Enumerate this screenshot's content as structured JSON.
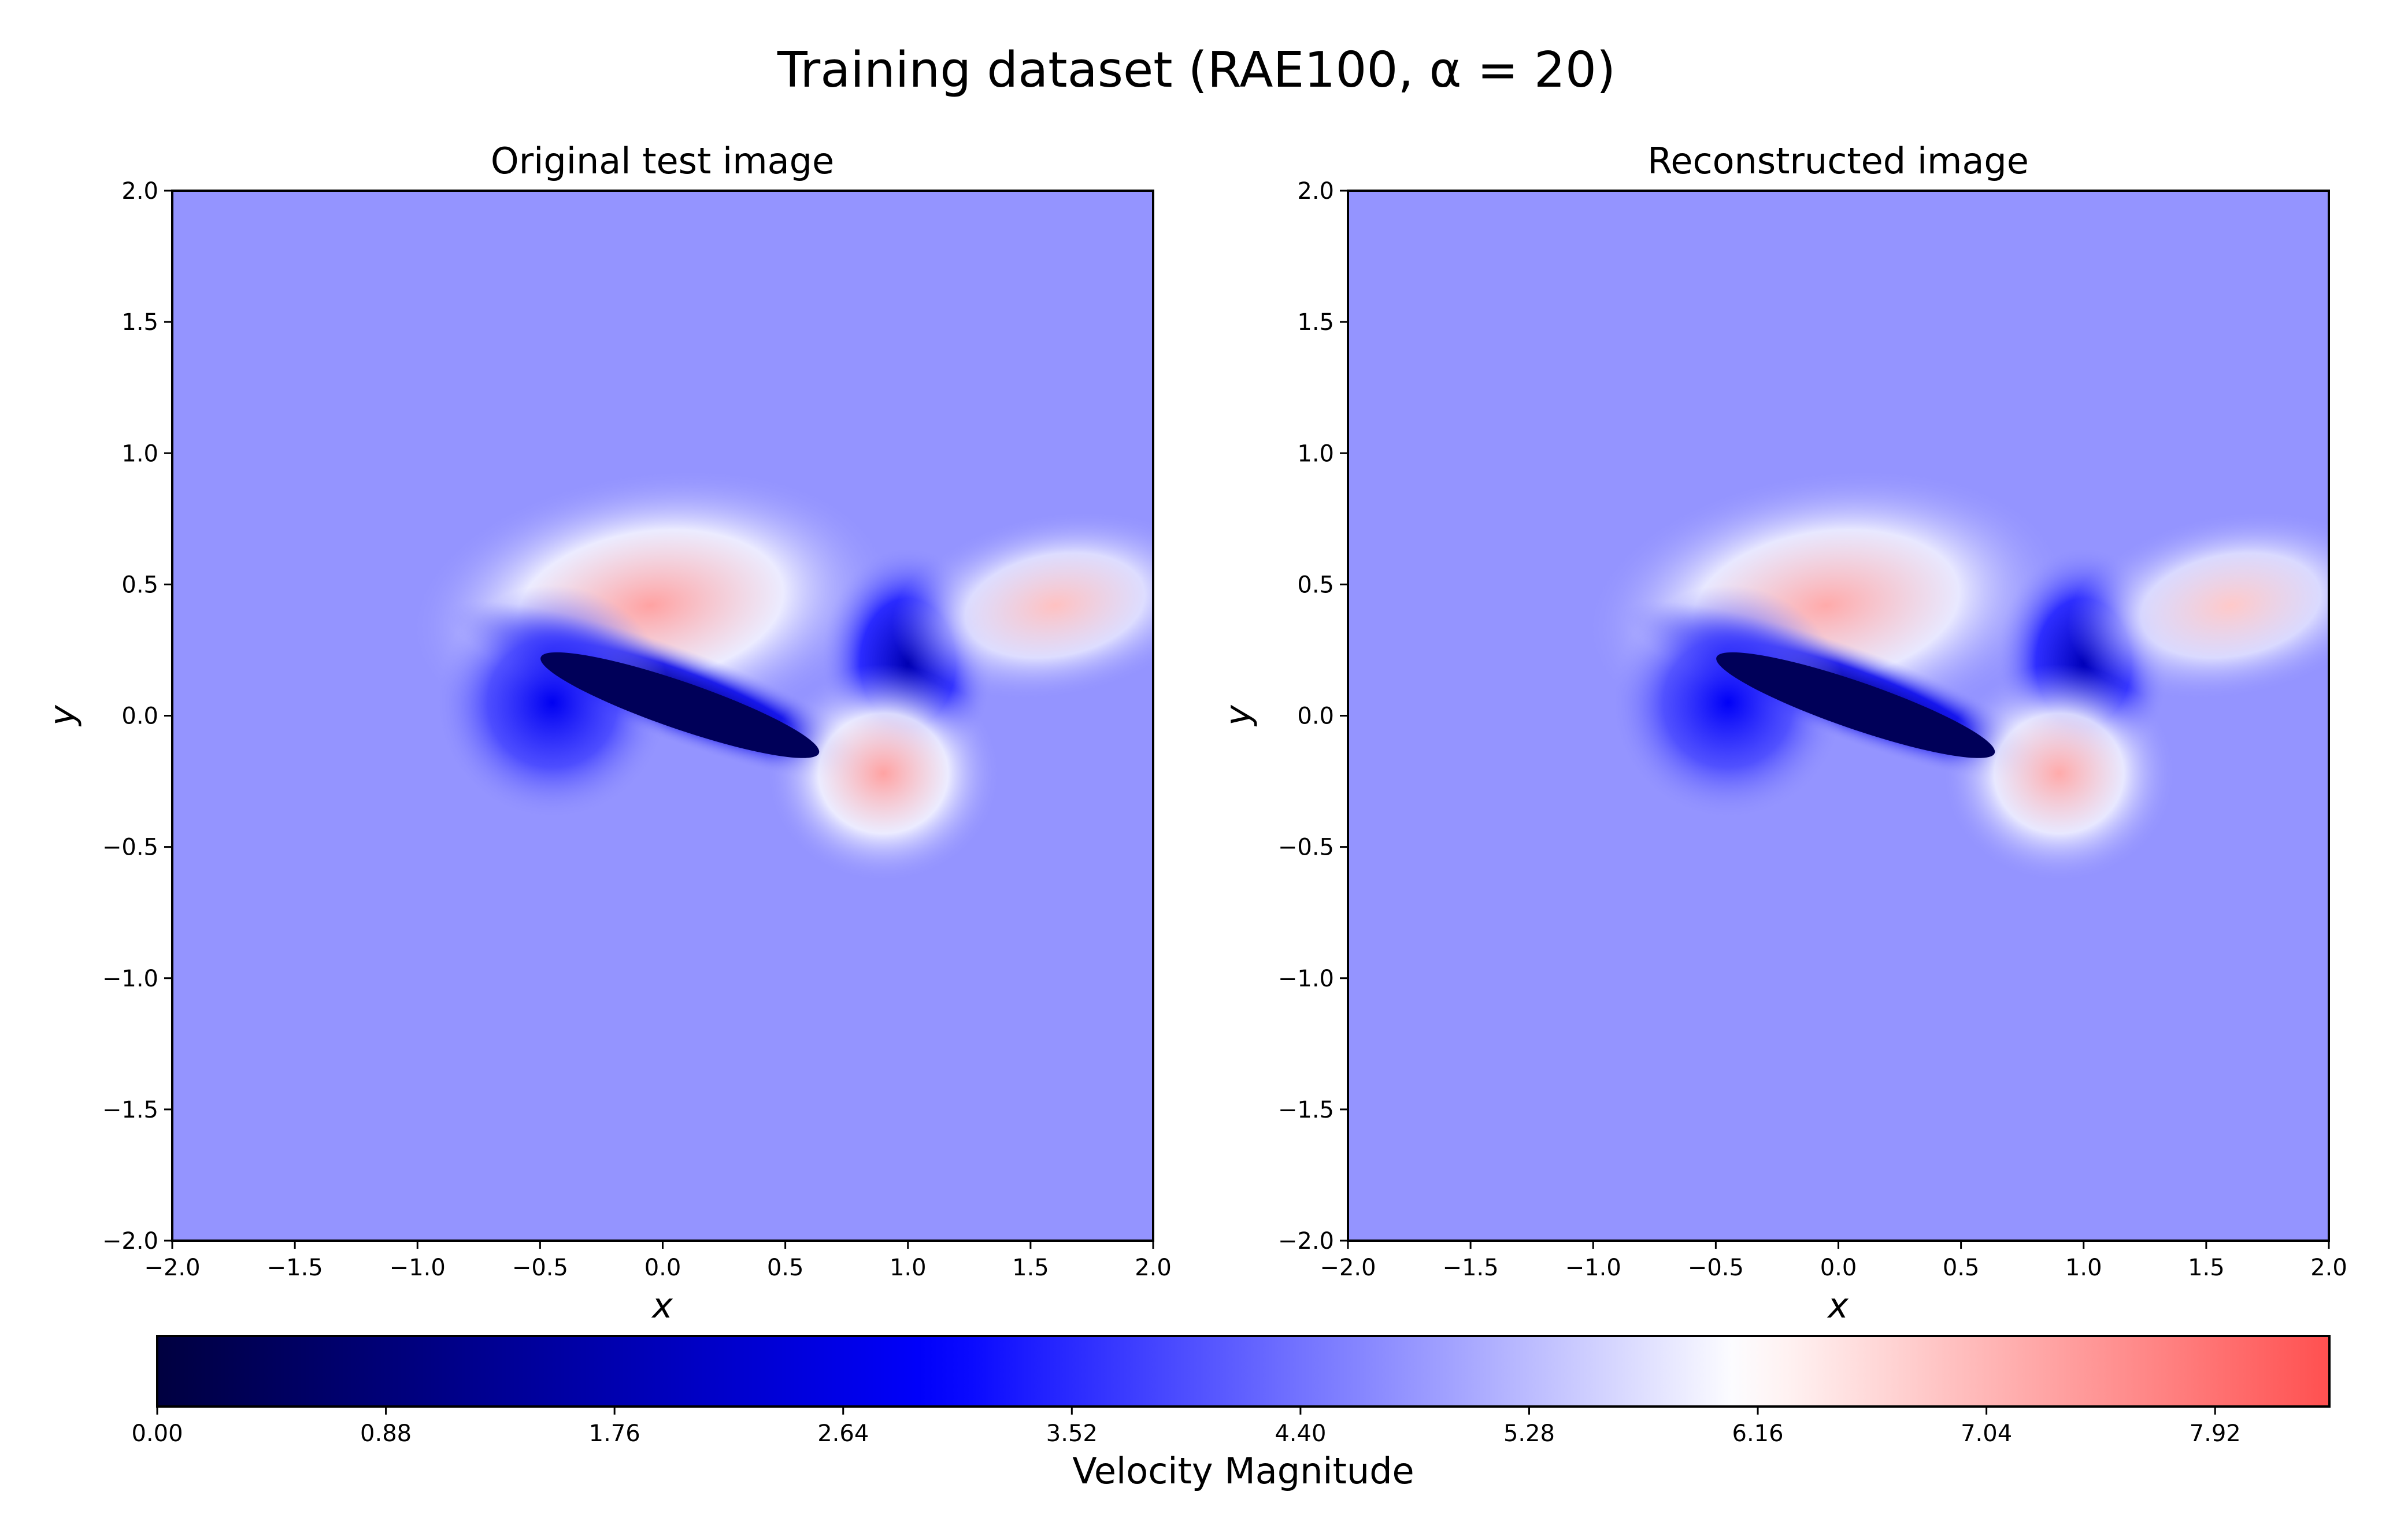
{
  "figure": {
    "suptitle": "Training dataset (RAE100, α = 20)"
  },
  "chart_data": [
    {
      "type": "heatmap",
      "title": "Original test image",
      "xlabel": "x",
      "ylabel": "y",
      "xlim": [
        -2.0,
        2.0
      ],
      "ylim": [
        -2.0,
        2.0
      ],
      "xticks": [
        "−2.0",
        "−1.5",
        "−1.0",
        "−0.5",
        "0.0",
        "0.5",
        "1.0",
        "1.5",
        "2.0"
      ],
      "yticks": [
        "−2.0",
        "−1.5",
        "−1.0",
        "−0.5",
        "0.0",
        "0.5",
        "1.0",
        "1.5",
        "2.0"
      ],
      "grid": false,
      "colormap": "bwr",
      "field_features": [
        {
          "feature": "upper-surface high-velocity lobe",
          "x": -0.05,
          "y": 0.42,
          "value": 7.3
        },
        {
          "feature": "airfoil low-velocity region",
          "x": 0.05,
          "y": 0.08,
          "value": 0.5
        },
        {
          "feature": "leading-edge low-velocity region",
          "x": -0.45,
          "y": 0.05,
          "value": 2.8
        },
        {
          "feature": "wake low-velocity pocket",
          "x": 1.0,
          "y": 0.2,
          "value": 1.8
        },
        {
          "feature": "wake high-velocity lobe (upper)",
          "x": 1.6,
          "y": 0.42,
          "value": 6.9
        },
        {
          "feature": "wake high-velocity lobe (lower)",
          "x": 0.9,
          "y": -0.22,
          "value": 7.3
        },
        {
          "feature": "far-field",
          "x": -1.5,
          "y": -1.5,
          "value": 4.8
        }
      ]
    },
    {
      "type": "heatmap",
      "title": "Reconstructed image",
      "xlabel": "x",
      "ylabel": "y",
      "xlim": [
        -2.0,
        2.0
      ],
      "ylim": [
        -2.0,
        2.0
      ],
      "xticks": [
        "−2.0",
        "−1.5",
        "−1.0",
        "−0.5",
        "0.0",
        "0.5",
        "1.0",
        "1.5",
        "2.0"
      ],
      "yticks": [
        "−2.0",
        "−1.5",
        "−1.0",
        "−0.5",
        "0.0",
        "0.5",
        "1.0",
        "1.5",
        "2.0"
      ],
      "grid": false,
      "colormap": "bwr",
      "field_features": [
        {
          "feature": "upper-surface high-velocity lobe",
          "x": -0.05,
          "y": 0.42,
          "value": 7.2
        },
        {
          "feature": "airfoil low-velocity region",
          "x": 0.05,
          "y": 0.08,
          "value": 0.6
        },
        {
          "feature": "leading-edge low-velocity region",
          "x": -0.45,
          "y": 0.05,
          "value": 2.9
        },
        {
          "feature": "wake low-velocity pocket",
          "x": 1.0,
          "y": 0.2,
          "value": 1.9
        },
        {
          "feature": "wake high-velocity lobe (upper)",
          "x": 1.6,
          "y": 0.42,
          "value": 6.8
        },
        {
          "feature": "wake high-velocity lobe (lower)",
          "x": 0.9,
          "y": -0.22,
          "value": 7.2
        },
        {
          "feature": "far-field",
          "x": -1.5,
          "y": -1.5,
          "value": 4.8
        }
      ]
    }
  ],
  "colorbar": {
    "label": "Velocity Magnitude",
    "range": [
      0.0,
      8.36
    ],
    "ticks": [
      0.0,
      0.88,
      1.76,
      2.64,
      3.52,
      4.4,
      5.28,
      6.16,
      7.04,
      7.92
    ],
    "tick_labels": [
      "0.00",
      "0.88",
      "1.76",
      "2.64",
      "3.52",
      "4.40",
      "5.28",
      "6.16",
      "7.04",
      "7.92"
    ],
    "colors": [
      "#000040",
      "#0000ff",
      "#ffffff",
      "#ff0000"
    ]
  }
}
